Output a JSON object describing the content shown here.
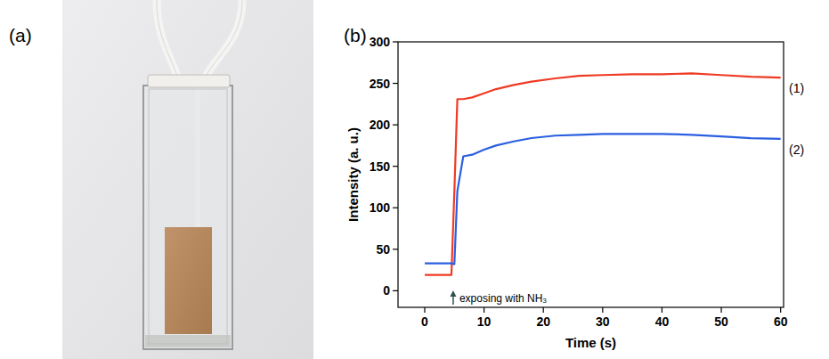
{
  "panels": {
    "a": "(a)",
    "b": "(b)"
  },
  "chart_data": {
    "type": "line",
    "x_label": "Time (s)",
    "y_label": "Intensity (a. u.)",
    "xlim": [
      -4.5,
      60.5
    ],
    "xticks": [
      0,
      10,
      20,
      30,
      40,
      50,
      60
    ],
    "ylim": [
      -20,
      300
    ],
    "yticks": [
      0,
      50,
      100,
      150,
      200,
      250,
      300
    ],
    "x": [
      0,
      4.5,
      5.0,
      5.5,
      6.5,
      8,
      10,
      12,
      15,
      18,
      22,
      26,
      30,
      35,
      40,
      45,
      50,
      55,
      60
    ],
    "series": [
      {
        "name": "(1)",
        "color": "#ef3b24",
        "values": [
          19,
          19,
          120,
          231,
          231,
          233,
          238,
          243,
          248,
          252,
          256,
          259,
          260,
          261,
          261,
          262,
          260,
          258,
          257
        ]
      },
      {
        "name": "(2)",
        "color": "#2b5fe0",
        "values": [
          33,
          33,
          32,
          120,
          162,
          164,
          170,
          175,
          180,
          184,
          187,
          188,
          189,
          189,
          189,
          188,
          186,
          184,
          183
        ]
      }
    ],
    "annotation": {
      "text": "exposing with NH₃",
      "x": 4.8
    }
  }
}
